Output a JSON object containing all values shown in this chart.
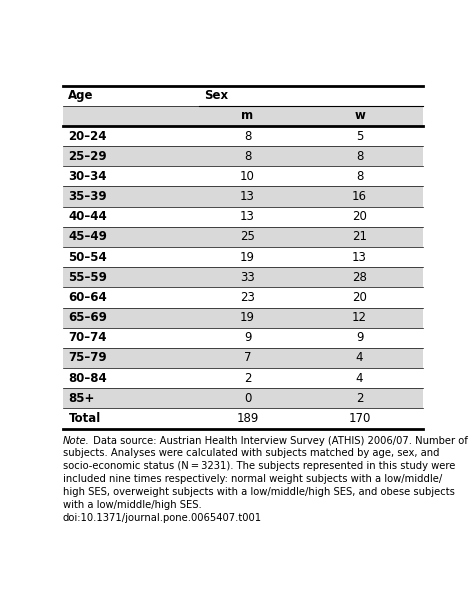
{
  "col_headers": [
    "Age",
    "m",
    "w"
  ],
  "sex_header": "Sex",
  "age_groups": [
    "20–24",
    "25–29",
    "30–34",
    "35–39",
    "40–44",
    "45–49",
    "50–54",
    "55–59",
    "60–64",
    "65–69",
    "70–74",
    "75–79",
    "80–84",
    "85+",
    "Total"
  ],
  "m_values": [
    "8",
    "8",
    "10",
    "13",
    "13",
    "25",
    "19",
    "33",
    "23",
    "19",
    "9",
    "7",
    "2",
    "0",
    "189"
  ],
  "w_values": [
    "5",
    "8",
    "8",
    "16",
    "20",
    "21",
    "13",
    "28",
    "20",
    "12",
    "9",
    "4",
    "4",
    "2",
    "170"
  ],
  "note_line1": "Note. Data source: Austrian Health Interview Survey (ATHIS) 2006/07. Number of",
  "note_line2": "subjects. Analyses were calculated with subjects matched by age, sex, and",
  "note_line3": "socio-economic status (N = 3231). The subjects represented in this study were",
  "note_line4": "included nine times respectively: normal weight subjects with a low/middle/",
  "note_line5": "high SES, overweight subjects with a low/middle/high SES, and obese subjects",
  "note_line6": "with a low/middle/high SES.",
  "note_line7": "doi:10.1371/journal.pone.0065407.t001",
  "bg_color_odd": "#d9d9d9",
  "bg_color_even": "#ffffff",
  "fig_bg": "#ffffff",
  "border_color": "#000000",
  "text_color": "#000000"
}
